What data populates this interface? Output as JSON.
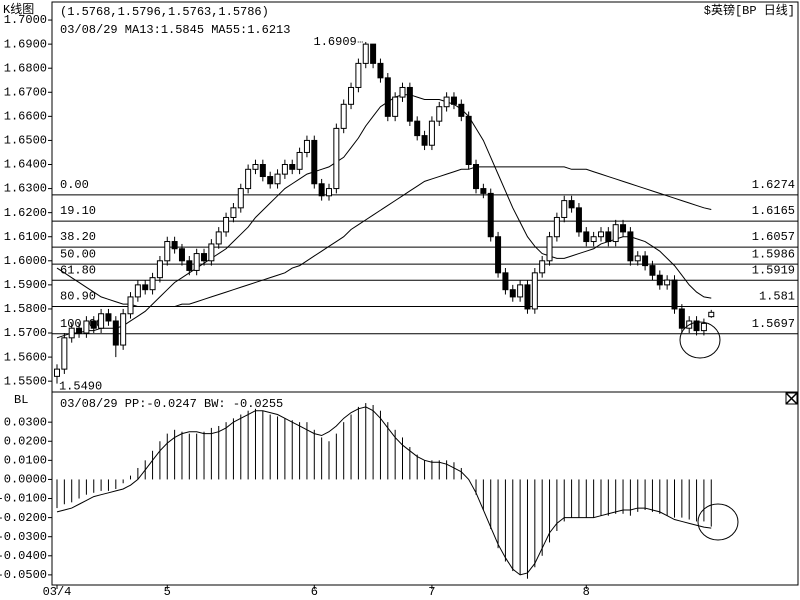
{
  "chart_data": [
    {
      "type": "candlestick",
      "title": "K线图",
      "subtitle": "(1.5768,1.5796,1.5763,1.5786)",
      "legend_text": "03/08/29 MA13:1.5845  MA55:1.6213",
      "symbol": "$英镑[BP 日线]",
      "color": "#000000",
      "up_color": "#ffffff",
      "down_color": "#000000",
      "xlim": [
        -0.68,
        100.8
      ],
      "ylim": [
        1.5455,
        1.7075
      ],
      "yticks": [
        {
          "value": 1.55,
          "label": "1.5500"
        },
        {
          "value": 1.56,
          "label": "1.5600"
        },
        {
          "value": 1.57,
          "label": "1.5700"
        },
        {
          "value": 1.58,
          "label": "1.5800"
        },
        {
          "value": 1.59,
          "label": "1.5900"
        },
        {
          "value": 1.6,
          "label": "1.6000"
        },
        {
          "value": 1.61,
          "label": "1.6100"
        },
        {
          "value": 1.62,
          "label": "1.6200"
        },
        {
          "value": 1.63,
          "label": "1.6300"
        },
        {
          "value": 1.64,
          "label": "1.6400"
        },
        {
          "value": 1.65,
          "label": "1.6500"
        },
        {
          "value": 1.66,
          "label": "1.6600"
        },
        {
          "value": 1.67,
          "label": "1.6700"
        },
        {
          "value": 1.68,
          "label": "1.6800"
        },
        {
          "value": 1.69,
          "label": "1.6900"
        },
        {
          "value": 1.7,
          "label": "1.7000"
        }
      ],
      "open": [
        1.552,
        1.555,
        1.568,
        1.572,
        1.57,
        1.575,
        1.572,
        1.578,
        1.575,
        1.565,
        1.578,
        1.585,
        1.59,
        1.588,
        1.593,
        1.6,
        1.608,
        1.605,
        1.6,
        1.596,
        1.603,
        1.6,
        1.607,
        1.612,
        1.618,
        1.622,
        1.63,
        1.638,
        1.64,
        1.635,
        1.632,
        1.636,
        1.64,
        1.638,
        1.645,
        1.65,
        1.632,
        1.627,
        1.63,
        1.655,
        1.665,
        1.672,
        1.682,
        1.69,
        1.682,
        1.676,
        1.66,
        1.668,
        1.672,
        1.658,
        1.652,
        1.648,
        1.658,
        1.664,
        1.668,
        1.665,
        1.66,
        1.64,
        1.63,
        1.628,
        1.61,
        1.595,
        1.588,
        1.585,
        1.59,
        1.58,
        1.595,
        1.6,
        1.61,
        1.618,
        1.625,
        1.622,
        1.612,
        1.608,
        1.61,
        1.612,
        1.608,
        1.615,
        1.612,
        1.6,
        1.602,
        1.598,
        1.594,
        1.59,
        1.592,
        1.58,
        1.572,
        1.575,
        1.571,
        1.5768
      ],
      "high": [
        1.557,
        1.57,
        1.574,
        1.574,
        1.577,
        1.577,
        1.58,
        1.58,
        1.577,
        1.58,
        1.587,
        1.592,
        1.592,
        1.595,
        1.602,
        1.61,
        1.61,
        1.607,
        1.602,
        1.605,
        1.605,
        1.609,
        1.614,
        1.62,
        1.624,
        1.632,
        1.64,
        1.642,
        1.642,
        1.637,
        1.638,
        1.642,
        1.642,
        1.647,
        1.652,
        1.652,
        1.634,
        1.632,
        1.657,
        1.667,
        1.674,
        1.684,
        1.6909,
        1.69,
        1.684,
        1.678,
        1.67,
        1.674,
        1.674,
        1.66,
        1.654,
        1.66,
        1.666,
        1.67,
        1.67,
        1.667,
        1.662,
        1.642,
        1.632,
        1.63,
        1.612,
        1.597,
        1.59,
        1.592,
        1.592,
        1.597,
        1.602,
        1.612,
        1.62,
        1.627,
        1.627,
        1.624,
        1.614,
        1.612,
        1.614,
        1.614,
        1.617,
        1.617,
        1.614,
        1.604,
        1.604,
        1.6,
        1.596,
        1.594,
        1.594,
        1.582,
        1.577,
        1.577,
        1.576,
        1.5796
      ],
      "low": [
        1.549,
        1.553,
        1.566,
        1.568,
        1.568,
        1.57,
        1.57,
        1.573,
        1.56,
        1.563,
        1.576,
        1.583,
        1.586,
        1.586,
        1.591,
        1.598,
        1.603,
        1.598,
        1.594,
        1.594,
        1.598,
        1.598,
        1.605,
        1.61,
        1.616,
        1.62,
        1.628,
        1.636,
        1.633,
        1.63,
        1.63,
        1.634,
        1.636,
        1.636,
        1.643,
        1.63,
        1.625,
        1.625,
        1.628,
        1.653,
        1.663,
        1.67,
        1.68,
        1.68,
        1.674,
        1.658,
        1.658,
        1.666,
        1.656,
        1.65,
        1.646,
        1.646,
        1.656,
        1.662,
        1.663,
        1.658,
        1.638,
        1.628,
        1.626,
        1.608,
        1.593,
        1.586,
        1.583,
        1.583,
        1.578,
        1.578,
        1.593,
        1.598,
        1.608,
        1.616,
        1.62,
        1.61,
        1.606,
        1.606,
        1.608,
        1.606,
        1.606,
        1.61,
        1.598,
        1.598,
        1.596,
        1.592,
        1.588,
        1.588,
        1.578,
        1.57,
        1.57,
        1.569,
        1.569,
        1.5763
      ],
      "close": [
        1.555,
        1.568,
        1.572,
        1.57,
        1.575,
        1.572,
        1.578,
        1.575,
        1.565,
        1.578,
        1.585,
        1.59,
        1.588,
        1.593,
        1.6,
        1.608,
        1.605,
        1.6,
        1.596,
        1.603,
        1.6,
        1.607,
        1.612,
        1.618,
        1.622,
        1.63,
        1.638,
        1.64,
        1.635,
        1.632,
        1.636,
        1.64,
        1.638,
        1.645,
        1.65,
        1.632,
        1.627,
        1.63,
        1.655,
        1.665,
        1.672,
        1.682,
        1.69,
        1.682,
        1.676,
        1.66,
        1.668,
        1.672,
        1.658,
        1.652,
        1.648,
        1.658,
        1.664,
        1.668,
        1.665,
        1.66,
        1.64,
        1.63,
        1.628,
        1.61,
        1.595,
        1.588,
        1.585,
        1.59,
        1.58,
        1.595,
        1.6,
        1.61,
        1.618,
        1.625,
        1.622,
        1.612,
        1.608,
        1.61,
        1.612,
        1.608,
        1.615,
        1.612,
        1.6,
        1.602,
        1.598,
        1.594,
        1.59,
        1.592,
        1.58,
        1.572,
        1.575,
        1.571,
        1.574,
        1.5786
      ],
      "series": [
        {
          "kind": "line",
          "color": "#000000",
          "values": [
            1.568,
            1.569,
            1.57,
            1.57,
            1.571,
            1.571,
            1.572,
            1.572,
            1.572,
            1.573,
            1.575,
            1.577,
            1.579,
            1.582,
            1.585,
            1.588,
            1.591,
            1.593,
            1.595,
            1.597,
            1.599,
            1.601,
            1.603,
            1.605,
            1.608,
            1.611,
            1.614,
            1.618,
            1.621,
            1.624,
            1.627,
            1.63,
            1.632,
            1.634,
            1.636,
            1.637,
            1.638,
            1.639,
            1.641,
            1.643,
            1.647,
            1.651,
            1.656,
            1.66,
            1.664,
            1.666,
            1.668,
            1.669,
            1.669,
            1.668,
            1.667,
            1.667,
            1.667,
            1.666,
            1.665,
            1.663,
            1.66,
            1.655,
            1.65,
            1.643,
            1.636,
            1.629,
            1.622,
            1.616,
            1.61,
            1.606,
            1.603,
            1.602,
            1.601,
            1.601,
            1.602,
            1.603,
            1.604,
            1.605,
            1.607,
            1.608,
            1.609,
            1.61,
            1.61,
            1.609,
            1.608,
            1.606,
            1.604,
            1.601,
            1.598,
            1.594,
            1.59,
            1.587,
            1.585,
            1.5845
          ]
        },
        {
          "kind": "line",
          "color": "#000000",
          "values": [
            1.597,
            1.595,
            1.593,
            1.591,
            1.589,
            1.587,
            1.585,
            1.584,
            1.583,
            1.582,
            1.582,
            1.581,
            1.581,
            1.581,
            1.581,
            1.581,
            1.581,
            1.582,
            1.582,
            1.583,
            1.584,
            1.585,
            1.586,
            1.587,
            1.588,
            1.589,
            1.59,
            1.591,
            1.592,
            1.593,
            1.594,
            1.595,
            1.597,
            1.598,
            1.6,
            1.602,
            1.604,
            1.606,
            1.608,
            1.61,
            1.613,
            1.615,
            1.617,
            1.619,
            1.621,
            1.623,
            1.625,
            1.627,
            1.629,
            1.631,
            1.633,
            1.634,
            1.635,
            1.636,
            1.637,
            1.638,
            1.638,
            1.639,
            1.639,
            1.639,
            1.639,
            1.639,
            1.639,
            1.639,
            1.639,
            1.639,
            1.639,
            1.639,
            1.639,
            1.639,
            1.638,
            1.638,
            1.638,
            1.637,
            1.636,
            1.635,
            1.634,
            1.633,
            1.632,
            1.631,
            1.63,
            1.629,
            1.628,
            1.627,
            1.626,
            1.625,
            1.624,
            1.623,
            1.622,
            1.6213
          ]
        }
      ],
      "fib_levels": [
        {
          "label": "0.00",
          "value": 1.6274
        },
        {
          "label": "19.10",
          "value": 1.6165
        },
        {
          "label": "38.20",
          "value": 1.6057
        },
        {
          "label": "50.00",
          "value": 1.5986
        },
        {
          "label": "61.80",
          "value": 1.5919
        },
        {
          "label": "80.90",
          "value": 1.581
        },
        {
          "label": "100.00",
          "value": 1.5697
        }
      ],
      "annotations": [
        "1.6909",
        "1.5490"
      ]
    },
    {
      "type": "oscillator",
      "title": "BL",
      "subtitle": "03/08/29 PP:-0.0247  BW: -0.0255",
      "xlim": [
        -0.68,
        100.8
      ],
      "ylim": [
        -0.0553,
        0.0458
      ],
      "yticks": [
        {
          "value": 0.03,
          "label": "0.0300"
        },
        {
          "value": 0.02,
          "label": "0.0200"
        },
        {
          "value": 0.01,
          "label": "0.0100"
        },
        {
          "value": 0,
          "label": "0.0000"
        },
        {
          "value": -0.01,
          "label": "-0.0100"
        },
        {
          "value": -0.02,
          "label": "-0.0200"
        },
        {
          "value": -0.03,
          "label": "-0.0300"
        },
        {
          "value": -0.04,
          "label": "-0.0400"
        },
        {
          "value": -0.05,
          "label": "-0.0500"
        }
      ],
      "xticks": [
        {
          "value": 0,
          "label": "03/4"
        },
        {
          "value": 15,
          "label": "5"
        },
        {
          "value": 35,
          "label": "6"
        },
        {
          "value": 51,
          "label": "7"
        },
        {
          "value": 72,
          "label": "8"
        }
      ],
      "series": [
        {
          "kind": "bar",
          "color": "#000000",
          "values": [
            -0.015,
            -0.013,
            -0.012,
            -0.01,
            -0.008,
            -0.007,
            -0.006,
            -0.006,
            -0.005,
            -0.002,
            0.002,
            0.006,
            0.01,
            0.015,
            0.02,
            0.024,
            0.026,
            0.025,
            0.024,
            0.024,
            0.025,
            0.027,
            0.028,
            0.03,
            0.032,
            0.034,
            0.036,
            0.037,
            0.036,
            0.034,
            0.033,
            0.032,
            0.031,
            0.03,
            0.03,
            0.026,
            0.022,
            0.02,
            0.024,
            0.03,
            0.034,
            0.038,
            0.04,
            0.039,
            0.036,
            0.03,
            0.026,
            0.022,
            0.017,
            0.013,
            0.01,
            0.01,
            0.01,
            0.01,
            0.009,
            0.006,
            0.0,
            -0.008,
            -0.016,
            -0.026,
            -0.036,
            -0.043,
            -0.048,
            -0.05,
            -0.052,
            -0.046,
            -0.04,
            -0.033,
            -0.027,
            -0.022,
            -0.02,
            -0.02,
            -0.02,
            -0.02,
            -0.019,
            -0.019,
            -0.018,
            -0.018,
            -0.019,
            -0.017,
            -0.016,
            -0.017,
            -0.018,
            -0.019,
            -0.02,
            -0.02,
            -0.021,
            -0.022,
            -0.022,
            -0.0247
          ]
        },
        {
          "kind": "line",
          "color": "#000000",
          "values": [
            -0.017,
            -0.016,
            -0.015,
            -0.013,
            -0.011,
            -0.009,
            -0.008,
            -0.007,
            -0.006,
            -0.005,
            -0.003,
            0.0,
            0.005,
            0.01,
            0.015,
            0.019,
            0.022,
            0.024,
            0.025,
            0.025,
            0.024,
            0.024,
            0.025,
            0.027,
            0.03,
            0.032,
            0.034,
            0.036,
            0.036,
            0.035,
            0.034,
            0.032,
            0.03,
            0.028,
            0.026,
            0.024,
            0.023,
            0.025,
            0.028,
            0.032,
            0.035,
            0.037,
            0.038,
            0.036,
            0.032,
            0.027,
            0.022,
            0.018,
            0.015,
            0.012,
            0.01,
            0.009,
            0.009,
            0.008,
            0.006,
            0.004,
            0.0,
            -0.007,
            -0.016,
            -0.025,
            -0.034,
            -0.041,
            -0.047,
            -0.05,
            -0.049,
            -0.044,
            -0.036,
            -0.028,
            -0.023,
            -0.02,
            -0.02,
            -0.02,
            -0.02,
            -0.02,
            -0.019,
            -0.018,
            -0.017,
            -0.016,
            -0.016,
            -0.015,
            -0.015,
            -0.016,
            -0.017,
            -0.019,
            -0.021,
            -0.022,
            -0.023,
            -0.024,
            -0.025,
            -0.0255
          ]
        }
      ]
    }
  ]
}
